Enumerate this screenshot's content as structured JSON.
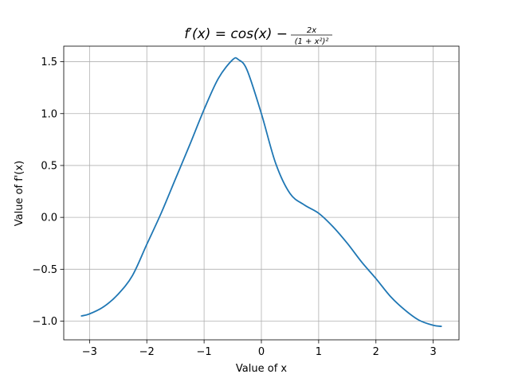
{
  "chart_data": {
    "type": "line",
    "title": {
      "lhs": "f′(x) = cos(x) − ",
      "numerator": "2x",
      "denominator": "(1 + x²)²",
      "full": "f′(x) = cos(x) − 2x/(1 + x²)²"
    },
    "xlabel": "Value of x",
    "ylabel": "Value of f'(x)",
    "xlim": [
      -3.45,
      3.45
    ],
    "ylim": [
      -1.18,
      1.65
    ],
    "xticks": [
      -3,
      -2,
      -1,
      0,
      1,
      2,
      3
    ],
    "xtick_labels": [
      "−3",
      "−2",
      "−1",
      "0",
      "1",
      "2",
      "3"
    ],
    "yticks": [
      -1.0,
      -0.5,
      0.0,
      0.5,
      1.0,
      1.5
    ],
    "ytick_labels": [
      "−1.0",
      "−0.5",
      "0.0",
      "0.5",
      "1.0",
      "1.5"
    ],
    "grid": true,
    "series": [
      {
        "line_color": "#1f77b4",
        "x_range": [
          -3.14159,
          3.14159
        ],
        "points": [
          [
            -3.14,
            -0.95
          ],
          [
            -3.0,
            -0.93
          ],
          [
            -2.75,
            -0.86
          ],
          [
            -2.5,
            -0.74
          ],
          [
            -2.25,
            -0.56
          ],
          [
            -2.0,
            -0.26
          ],
          [
            -1.75,
            0.04
          ],
          [
            -1.5,
            0.37
          ],
          [
            -1.25,
            0.7
          ],
          [
            -1.0,
            1.04
          ],
          [
            -0.75,
            1.34
          ],
          [
            -0.5,
            1.52
          ],
          [
            -0.4,
            1.52
          ],
          [
            -0.25,
            1.42
          ],
          [
            0.0,
            1.0
          ],
          [
            0.25,
            0.52
          ],
          [
            0.5,
            0.23
          ],
          [
            0.75,
            0.12
          ],
          [
            1.0,
            0.04
          ],
          [
            1.25,
            -0.09
          ],
          [
            1.5,
            -0.25
          ],
          [
            1.75,
            -0.43
          ],
          [
            2.0,
            -0.59
          ],
          [
            2.25,
            -0.76
          ],
          [
            2.5,
            -0.89
          ],
          [
            2.75,
            -0.99
          ],
          [
            3.0,
            -1.04
          ],
          [
            3.14,
            -1.05
          ]
        ]
      }
    ]
  }
}
